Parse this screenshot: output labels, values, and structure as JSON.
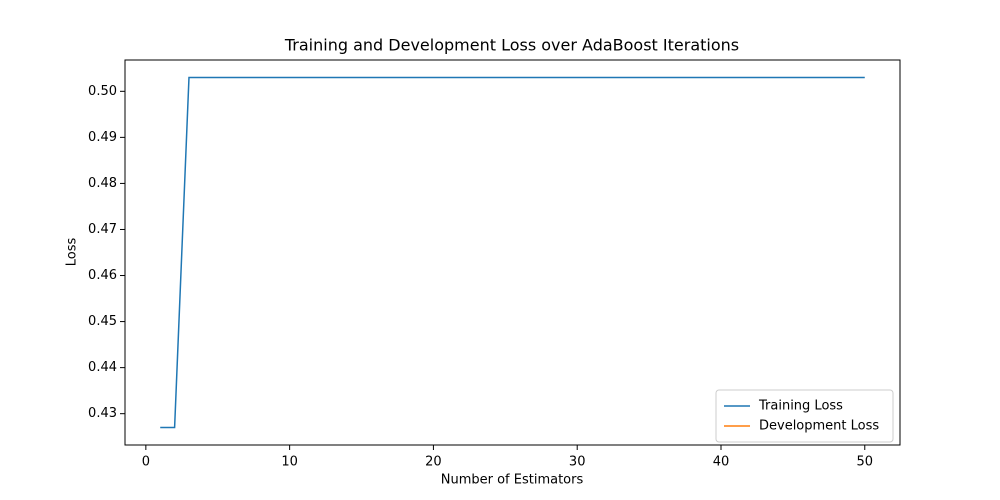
{
  "chart_data": {
    "type": "line",
    "title": "Training and Development Loss over AdaBoost Iterations",
    "xlabel": "Number of Estimators",
    "ylabel": "Loss",
    "x": [
      1,
      2,
      3,
      4,
      5,
      6,
      7,
      8,
      9,
      10,
      11,
      12,
      13,
      14,
      15,
      16,
      17,
      18,
      19,
      20,
      21,
      22,
      23,
      24,
      25,
      26,
      27,
      28,
      29,
      30,
      31,
      32,
      33,
      34,
      35,
      36,
      37,
      38,
      39,
      40,
      41,
      42,
      43,
      44,
      45,
      46,
      47,
      48,
      49,
      50
    ],
    "series": [
      {
        "name": "Training Loss",
        "color": "#1f77b4",
        "values": [
          0.427,
          0.427,
          0.503,
          0.503,
          0.503,
          0.503,
          0.503,
          0.503,
          0.503,
          0.503,
          0.503,
          0.503,
          0.503,
          0.503,
          0.503,
          0.503,
          0.503,
          0.503,
          0.503,
          0.503,
          0.503,
          0.503,
          0.503,
          0.503,
          0.503,
          0.503,
          0.503,
          0.503,
          0.503,
          0.503,
          0.503,
          0.503,
          0.503,
          0.503,
          0.503,
          0.503,
          0.503,
          0.503,
          0.503,
          0.503,
          0.503,
          0.503,
          0.503,
          0.503,
          0.503,
          0.503,
          0.503,
          0.503,
          0.503,
          0.503
        ]
      },
      {
        "name": "Development Loss",
        "color": "#ff7f0e",
        "values": [
          null,
          null,
          null,
          null,
          null,
          null,
          null,
          null,
          null,
          null,
          null,
          null,
          null,
          null,
          null,
          null,
          null,
          null,
          null,
          null,
          null,
          null,
          null,
          null,
          null,
          null,
          null,
          null,
          null,
          null,
          null,
          null,
          null,
          null,
          null,
          null,
          null,
          null,
          null,
          null,
          null,
          null,
          null,
          null,
          null,
          null,
          null,
          null,
          null,
          null
        ]
      }
    ],
    "xlim": [
      -1.45,
      52.45
    ],
    "xticks": [
      0,
      10,
      20,
      30,
      40,
      50
    ],
    "ylim": [
      0.4232,
      0.5068
    ],
    "yticks": [
      0.43,
      0.44,
      0.45,
      0.46,
      0.47,
      0.48,
      0.49,
      {
        "value": 0.5,
        "label": "0.50"
      }
    ],
    "legend": "lower right",
    "grid": false
  }
}
